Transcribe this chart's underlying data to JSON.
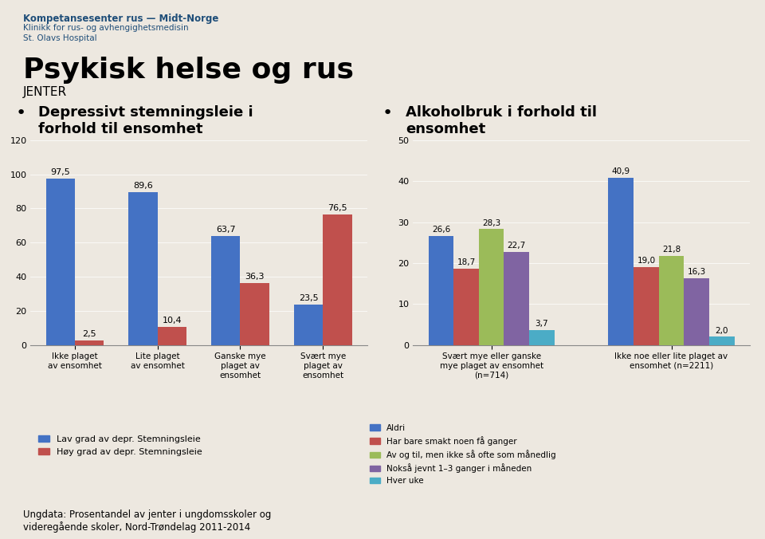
{
  "bg_color": "#ede8e0",
  "header_line1": "Kompetansesenter rus — Midt-Norge",
  "header_line2": "Klinikk for rus- og avhengighetsmedisin",
  "header_line3": "St. Olavs Hospital",
  "title_main": "Psykisk helse og rus",
  "title_sub": "JENTER",
  "bullet1_title": "Depressivt stemningsleie i\nforhold til ensomhet",
  "bullet2_title": "Alkoholbruk i forhold til\nensomhet",
  "chart1": {
    "categories": [
      "Ikke plaget\nav ensomhet",
      "Lite plaget\nav ensomhet",
      "Ganske mye\nplaget av\nensomhet",
      "Svært mye\nplaget av\nensomhet"
    ],
    "lav_values": [
      97.5,
      89.6,
      63.7,
      23.5
    ],
    "hoy_values": [
      2.5,
      10.4,
      36.3,
      76.5
    ],
    "lav_color": "#4472C4",
    "hoy_color": "#C0504D",
    "lav_label": "Lav grad av depr. Stemningsleie",
    "hoy_label": "Høy grad av depr. Stemningsleie",
    "ylim": [
      0,
      120
    ],
    "yticks": [
      0,
      20,
      40,
      60,
      80,
      100,
      120
    ]
  },
  "chart2": {
    "group_labels": [
      "Svært mye eller ganske\nmye plaget av ensomhet\n(n=714)",
      "Ikke noe eller lite plaget av\nensomhet (n=2211)"
    ],
    "series": [
      {
        "label": "Aldri",
        "values": [
          26.6,
          40.9
        ],
        "color": "#4472C4"
      },
      {
        "label": "Har bare smakt noen få ganger",
        "values": [
          18.7,
          19.0
        ],
        "color": "#C0504D"
      },
      {
        "label": "Av og til, men ikke så ofte som månedlig",
        "values": [
          28.3,
          21.8
        ],
        "color": "#9BBB59"
      },
      {
        "label": "Nokså jevnt 1–3 ganger i måneden",
        "values": [
          22.7,
          16.3
        ],
        "color": "#8064A2"
      },
      {
        "label": "Hver uke",
        "values": [
          3.7,
          2.0
        ],
        "color": "#4BACC6"
      }
    ],
    "ylim": [
      0,
      50
    ],
    "yticks": [
      0,
      10,
      20,
      30,
      40,
      50
    ]
  },
  "footnote": "Ungdata: Prosentandel av jenter i ungdomsskoler og\nvideregående skoler, Nord-Trøndelag 2011-2014"
}
